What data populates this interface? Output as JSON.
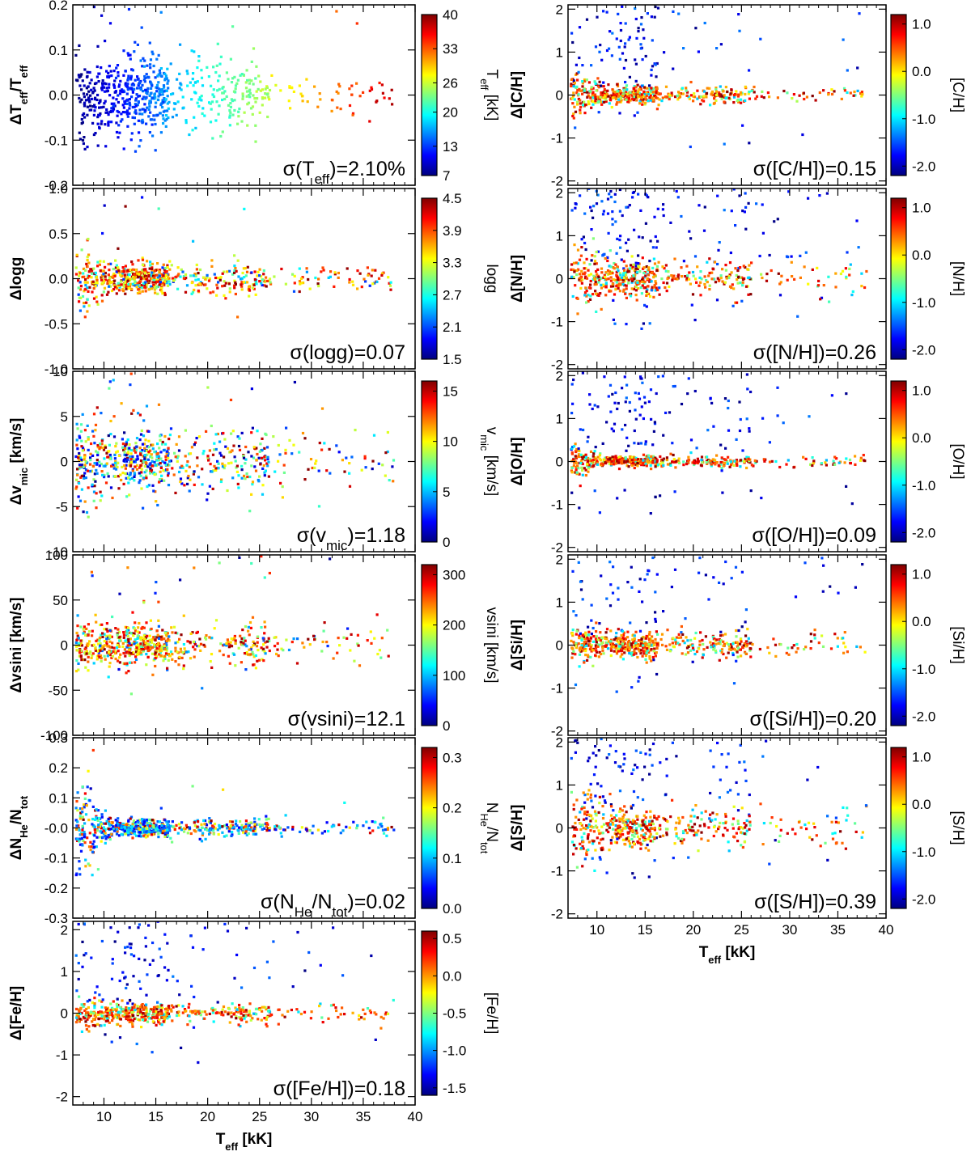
{
  "figure": {
    "x_label": {
      "main": "T",
      "sub": "eff",
      "rest": " [kK]"
    },
    "colormap": [
      "#00007f",
      "#0000ff",
      "#007fff",
      "#00ffff",
      "#7fff7f",
      "#ffff00",
      "#ff7f00",
      "#ff0000",
      "#7f0000"
    ]
  },
  "chart_data": [
    {
      "id": "teff",
      "type": "scatter",
      "column": "left",
      "row": 0,
      "ylabel": {
        "main": "ΔT",
        "sub": "eff",
        "rest": "/T",
        "sub2": "eff"
      },
      "sigma_label": {
        "pre": "σ(T",
        "sub": "eff",
        "post": ")=2.10%"
      },
      "colorbar": {
        "label": {
          "main": "T",
          "sub": "eff",
          "rest": " [kK]"
        },
        "ticks": [
          "7",
          "13",
          "20",
          "26",
          "33",
          "40"
        ],
        "range": [
          7,
          40
        ]
      },
      "xlim": [
        7,
        40
      ],
      "ylim": [
        -0.2,
        0.2
      ],
      "yticks": [
        "0.2",
        "0.1",
        "0.0",
        "-0.1",
        "-0.2"
      ],
      "ytick_values": [
        0.2,
        0.1,
        0.0,
        -0.1,
        -0.2
      ],
      "xticks": [],
      "xtick_values": [
        10,
        15,
        20,
        25,
        30,
        35,
        40
      ],
      "scatter_model": {
        "spread": 0.04,
        "spread_hot": 0.02,
        "color_mode": "teff",
        "n": 700,
        "outlier_frac": 0.02
      }
    },
    {
      "id": "logg",
      "type": "scatter",
      "column": "left",
      "row": 1,
      "ylabel": {
        "main": "Δlogg"
      },
      "sigma_label": {
        "pre": "σ(logg)=0.07"
      },
      "colorbar": {
        "label": {
          "main": "logg"
        },
        "ticks": [
          "1.5",
          "2.1",
          "2.7",
          "3.3",
          "3.9",
          "4.5"
        ],
        "range": [
          1.5,
          4.5
        ]
      },
      "xlim": [
        7,
        40
      ],
      "ylim": [
        -1.0,
        1.0
      ],
      "yticks": [
        "1.0",
        "0.5",
        "0.0",
        "-0.5",
        "-1.0"
      ],
      "ytick_values": [
        1.0,
        0.5,
        0.0,
        -0.5,
        -1.0
      ],
      "xticks": [],
      "xtick_values": [
        10,
        15,
        20,
        25,
        30,
        35,
        40
      ],
      "scatter_model": {
        "spread": 0.08,
        "spread_cool": 0.22,
        "color_mode": "high",
        "n": 700,
        "outlier_frac": 0.01
      }
    },
    {
      "id": "vmic",
      "type": "scatter",
      "column": "left",
      "row": 2,
      "ylabel": {
        "main": "Δv",
        "sub": "mic",
        "rest": " [km/s]"
      },
      "sigma_label": {
        "pre": "σ(v",
        "sub": "mic",
        "post": ")=1.18"
      },
      "colorbar": {
        "label": {
          "main": "v",
          "sub": "mic",
          "rest": " [km/s]"
        },
        "ticks": [
          "0",
          "5",
          "10",
          "15"
        ],
        "range": [
          0,
          16
        ]
      },
      "xlim": [
        7,
        40
      ],
      "ylim": [
        -10,
        10
      ],
      "yticks": [
        "10",
        "5",
        "0",
        "-5",
        "-10"
      ],
      "ytick_values": [
        10,
        5,
        0,
        -5,
        -10
      ],
      "xticks": [],
      "xtick_values": [
        10,
        15,
        20,
        25,
        30,
        35,
        40
      ],
      "scatter_model": {
        "spread": 1.6,
        "spread_cool": 2.6,
        "color_mode": "mixed",
        "n": 700,
        "outlier_frac": 0.06
      }
    },
    {
      "id": "vsini",
      "type": "scatter",
      "column": "left",
      "row": 3,
      "ylabel": {
        "main": "Δvsini [km/s]"
      },
      "sigma_label": {
        "pre": "σ(vsini)=12.1"
      },
      "colorbar": {
        "label": {
          "main": "vsini [km/s]"
        },
        "ticks": [
          "0",
          "100",
          "200",
          "300"
        ],
        "range": [
          0,
          320
        ]
      },
      "xlim": [
        7,
        40
      ],
      "ylim": [
        -100,
        100
      ],
      "yticks": [
        "100",
        "50",
        "0",
        "-50",
        "-100"
      ],
      "ytick_values": [
        100,
        50,
        0,
        -50,
        -100
      ],
      "xticks": [],
      "xtick_values": [
        10,
        15,
        20,
        25,
        30,
        35,
        40
      ],
      "scatter_model": {
        "spread": 10,
        "spread_cool": 16,
        "color_mode": "high",
        "n": 700,
        "outlier_frac": 0.05
      }
    },
    {
      "id": "nhe",
      "type": "scatter",
      "column": "left",
      "row": 4,
      "ylabel": {
        "main": "ΔN",
        "sub": "He",
        "rest": "/N",
        "sub2": "tot"
      },
      "sigma_label": {
        "pre": "σ(N",
        "sub": "He",
        "post": "/N",
        "sub2": "tot",
        "post2": ")=0.02"
      },
      "colorbar": {
        "label": {
          "main": "N",
          "sub": "He",
          "rest": "/N",
          "sub2": "tot"
        },
        "ticks": [
          "0.0",
          "0.1",
          "0.2",
          "0.3"
        ],
        "range": [
          0,
          0.32
        ]
      },
      "xlim": [
        7,
        40
      ],
      "ylim": [
        -0.3,
        0.3
      ],
      "yticks": [
        "0.3",
        "0.2",
        "0.1",
        "-0.0",
        "-0.1",
        "-0.2",
        "-0.3"
      ],
      "ytick_values": [
        0.3,
        0.2,
        0.1,
        0.0,
        -0.1,
        -0.2,
        -0.3
      ],
      "xticks": [],
      "xtick_values": [
        10,
        15,
        20,
        25,
        30,
        35,
        40
      ],
      "scatter_model": {
        "spread": 0.015,
        "spread_cool": 0.09,
        "color_mode": "low",
        "n": 700,
        "outlier_frac": 0.01
      }
    },
    {
      "id": "feh",
      "type": "scatter",
      "column": "left",
      "row": 5,
      "ylabel": {
        "main": "Δ[Fe/H]"
      },
      "sigma_label": {
        "pre": "σ([Fe/H])=0.18"
      },
      "colorbar": {
        "label": {
          "main": "[Fe/H]"
        },
        "ticks": [
          "-1.5",
          "-1.0",
          "-0.5",
          "0.0",
          "0.5"
        ],
        "range": [
          -1.6,
          0.6
        ]
      },
      "xlim": [
        7,
        40
      ],
      "ylim": [
        -2.2,
        2.2
      ],
      "yticks": [
        "2",
        "1",
        "0",
        "-1",
        "-2"
      ],
      "ytick_values": [
        2,
        1,
        0,
        -1,
        -2
      ],
      "xticks": [
        "10",
        "15",
        "20",
        "25",
        "30",
        "35",
        "40"
      ],
      "xtick_values": [
        10,
        15,
        20,
        25,
        30,
        35,
        40
      ],
      "scatter_model": {
        "spread": 0.12,
        "spread_cool": 0.2,
        "color_mode": "abund",
        "n": 650,
        "outlier_frac": 0.18
      }
    },
    {
      "id": "ch",
      "type": "scatter",
      "column": "right",
      "row": 0,
      "ylabel": {
        "main": "Δ[C/H]"
      },
      "sigma_label": {
        "pre": "σ([C/H])=0.15"
      },
      "colorbar": {
        "label": {
          "main": "[C/H]"
        },
        "ticks": [
          "-2.0",
          "-1.0",
          "0.0",
          "1.0"
        ],
        "range": [
          -2.2,
          1.2
        ]
      },
      "xlim": [
        7,
        40
      ],
      "ylim": [
        -2.1,
        2.1
      ],
      "yticks": [
        "2",
        "1",
        "0",
        "-1",
        "-2"
      ],
      "ytick_values": [
        2,
        1,
        0,
        -1,
        -2
      ],
      "xticks": [],
      "xtick_values": [
        10,
        15,
        20,
        25,
        30,
        35,
        40
      ],
      "scatter_model": {
        "spread": 0.1,
        "spread_cool": 0.4,
        "color_mode": "abund",
        "n": 650,
        "outlier_frac": 0.18
      }
    },
    {
      "id": "nh",
      "type": "scatter",
      "column": "right",
      "row": 1,
      "ylabel": {
        "main": "Δ[N/H]"
      },
      "sigma_label": {
        "pre": "σ([N/H])=0.26"
      },
      "colorbar": {
        "label": {
          "main": "[N/H]"
        },
        "ticks": [
          "-2.0",
          "-1.0",
          "0.0",
          "1.0"
        ],
        "range": [
          -2.2,
          1.2
        ]
      },
      "xlim": [
        7,
        40
      ],
      "ylim": [
        -2.1,
        2.1
      ],
      "yticks": [
        "2",
        "1",
        "0",
        "-1",
        "-2"
      ],
      "ytick_values": [
        2,
        1,
        0,
        -1,
        -2
      ],
      "xticks": [],
      "xtick_values": [
        10,
        15,
        20,
        25,
        30,
        35,
        40
      ],
      "scatter_model": {
        "spread": 0.2,
        "spread_cool": 0.5,
        "color_mode": "abund",
        "n": 650,
        "outlier_frac": 0.2
      }
    },
    {
      "id": "oh",
      "type": "scatter",
      "column": "right",
      "row": 2,
      "ylabel": {
        "main": "Δ[O/H]"
      },
      "sigma_label": {
        "pre": "σ([O/H])=0.09"
      },
      "colorbar": {
        "label": {
          "main": "[O/H]"
        },
        "ticks": [
          "-2.0",
          "-1.0",
          "0.0",
          "1.0"
        ],
        "range": [
          -2.2,
          1.2
        ]
      },
      "xlim": [
        7,
        40
      ],
      "ylim": [
        -2.1,
        2.1
      ],
      "yticks": [
        "2",
        "1",
        "0",
        "-1",
        "-2"
      ],
      "ytick_values": [
        2,
        1,
        0,
        -1,
        -2
      ],
      "xticks": [],
      "xtick_values": [
        10,
        15,
        20,
        25,
        30,
        35,
        40
      ],
      "scatter_model": {
        "spread": 0.06,
        "spread_cool": 0.2,
        "color_mode": "abund",
        "n": 650,
        "outlier_frac": 0.22
      }
    },
    {
      "id": "sih",
      "type": "scatter",
      "column": "right",
      "row": 3,
      "ylabel": {
        "main": "Δ[Si/H]"
      },
      "sigma_label": {
        "pre": "σ([Si/H])=0.20"
      },
      "colorbar": {
        "label": {
          "main": "[Si/H]"
        },
        "ticks": [
          "-2.0",
          "-1.0",
          "0.0",
          "1.0"
        ],
        "range": [
          -2.2,
          1.2
        ]
      },
      "xlim": [
        7,
        40
      ],
      "ylim": [
        -2.1,
        2.1
      ],
      "yticks": [
        "2",
        "1",
        "0",
        "-1",
        "-2"
      ],
      "ytick_values": [
        2,
        1,
        0,
        -1,
        -2
      ],
      "xticks": [],
      "xtick_values": [
        10,
        15,
        20,
        25,
        30,
        35,
        40
      ],
      "scatter_model": {
        "spread": 0.14,
        "spread_cool": 0.25,
        "color_mode": "abund",
        "n": 650,
        "outlier_frac": 0.15
      }
    },
    {
      "id": "sh",
      "type": "scatter",
      "column": "right",
      "row": 4,
      "ylabel": {
        "main": "Δ[S/H]"
      },
      "sigma_label": {
        "pre": "σ([S/H])=0.39"
      },
      "colorbar": {
        "label": {
          "main": "[S/H]"
        },
        "ticks": [
          "-2.0",
          "-1.0",
          "0.0",
          "1.0"
        ],
        "range": [
          -2.2,
          1.2
        ]
      },
      "xlim": [
        7,
        40
      ],
      "ylim": [
        -2.1,
        2.1
      ],
      "yticks": [
        "2",
        "1",
        "0",
        "-1",
        "-2"
      ],
      "ytick_values": [
        2,
        1,
        0,
        -1,
        -2
      ],
      "xticks": [
        "10",
        "15",
        "20",
        "25",
        "30",
        "35",
        "40"
      ],
      "xtick_values": [
        10,
        15,
        20,
        25,
        30,
        35,
        40
      ],
      "scatter_model": {
        "spread": 0.25,
        "spread_cool": 0.55,
        "color_mode": "abund",
        "n": 600,
        "outlier_frac": 0.2
      }
    }
  ]
}
